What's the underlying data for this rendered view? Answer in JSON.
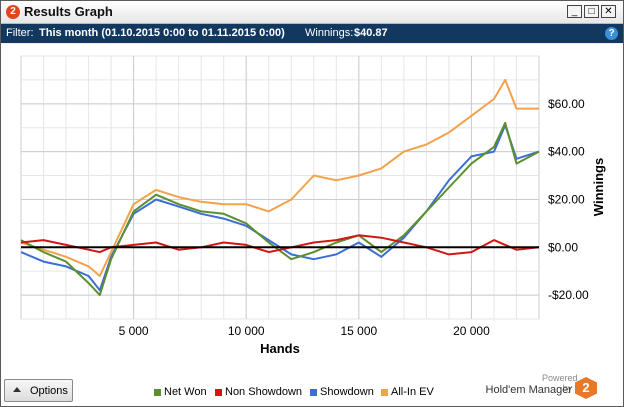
{
  "window": {
    "title": "Results Graph",
    "app_icon_text": "2",
    "minimize": "_",
    "maximize": "□",
    "close": "✕"
  },
  "filter": {
    "label": "Filter:",
    "value": "This month (01.10.2015 0:00 to 01.11.2015 0:00)",
    "winnings_label": "Winnings:",
    "winnings_value": "$40.87",
    "help": "?"
  },
  "options_button": {
    "label": "Options"
  },
  "branding": {
    "powered": "Powered by",
    "name": "Hold'em Manager",
    "logo_text": "2"
  },
  "colors": {
    "net_won": "#5d8f2e",
    "non_showdown": "#d41515",
    "showdown": "#3b6fd6",
    "all_in_ev": "#f1a24b",
    "filter_bar": "#12385f"
  },
  "chart_data": {
    "type": "line",
    "xlabel": "Hands",
    "ylabel": "Winnings",
    "xlim": [
      0,
      23000
    ],
    "ylim": [
      -30,
      80
    ],
    "x_ticks": [
      5000,
      10000,
      15000,
      20000
    ],
    "x_tick_labels": [
      "5 000",
      "10 000",
      "15 000",
      "20 000"
    ],
    "y_ticks": [
      -20,
      0,
      20,
      40,
      60
    ],
    "y_tick_labels": [
      "-$20.00",
      "$0.00",
      "$20.00",
      "$40.00",
      "$60.00"
    ],
    "grid": true,
    "legend": "bottom",
    "x": [
      0,
      1000,
      2000,
      3000,
      3500,
      4000,
      5000,
      6000,
      7000,
      8000,
      9000,
      10000,
      11000,
      12000,
      13000,
      14000,
      15000,
      16000,
      17000,
      18000,
      19000,
      20000,
      21000,
      21500,
      22000,
      23000
    ],
    "series": [
      {
        "name": "Net Won",
        "color": "#5d8f2e",
        "values": [
          3,
          -2,
          -6,
          -15,
          -20,
          -5,
          15,
          22,
          18,
          15,
          14,
          10,
          2,
          -5,
          -2,
          2,
          5,
          -2,
          5,
          15,
          25,
          35,
          42,
          52,
          35,
          40
        ]
      },
      {
        "name": "Non Showdown",
        "color": "#d41515",
        "values": [
          2,
          3,
          1,
          -1,
          -2,
          0,
          1,
          2,
          -1,
          0,
          2,
          1,
          -2,
          0,
          2,
          3,
          5,
          4,
          2,
          0,
          -3,
          -2,
          3,
          1,
          -1,
          0
        ]
      },
      {
        "name": "Showdown",
        "color": "#3b6fd6",
        "values": [
          -2,
          -6,
          -8,
          -12,
          -18,
          -4,
          14,
          20,
          17,
          14,
          12,
          9,
          3,
          -3,
          -5,
          -3,
          2,
          -4,
          4,
          15,
          28,
          38,
          40,
          51,
          37,
          40
        ]
      },
      {
        "name": "All-In EV",
        "color": "#f1a24b",
        "values": [
          2,
          -1,
          -4,
          -8,
          -12,
          -2,
          18,
          24,
          21,
          19,
          18,
          18,
          15,
          20,
          30,
          28,
          30,
          33,
          40,
          43,
          48,
          55,
          62,
          70,
          58,
          58
        ]
      }
    ]
  }
}
